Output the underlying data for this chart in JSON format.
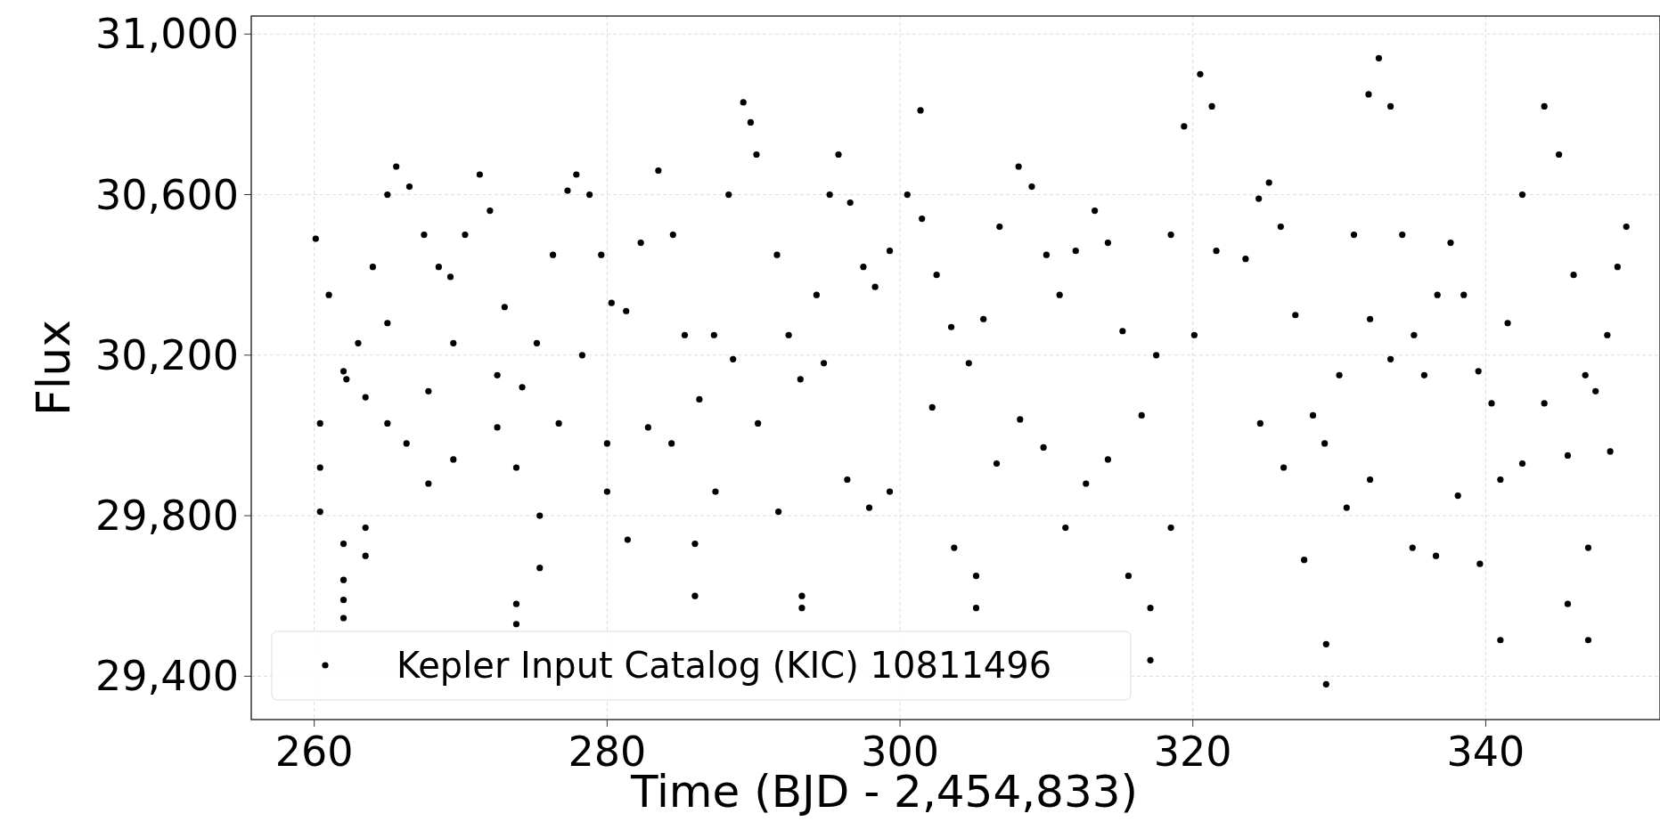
{
  "chart_data": {
    "type": "scatter",
    "xlabel": "Time (BJD - 2,454,833)",
    "ylabel": "Flux",
    "xlim": [
      255.7,
      351.9
    ],
    "ylim": [
      29292,
      31045
    ],
    "xticks": [
      260,
      280,
      300,
      320,
      340
    ],
    "yticks": [
      {
        "value": 29400,
        "label": "29,400"
      },
      {
        "value": 29800,
        "label": "29,800"
      },
      {
        "value": 30200,
        "label": "30,200"
      },
      {
        "value": 30600,
        "label": "30,600"
      },
      {
        "value": 31000,
        "label": "31,000"
      }
    ],
    "grid": true,
    "legend": "bottom left",
    "marker": "circle",
    "series": [
      {
        "name": "Kepler Input Catalog (KIC) 10811496",
        "color": "#000000",
        "x": [
          260.1,
          261,
          262,
          262.2,
          263,
          264,
          265,
          265.6,
          266.5,
          267.5,
          268.5,
          269.3,
          270.3,
          271.3,
          272,
          273,
          274.2,
          275.2,
          276.3,
          277.3,
          277.9,
          278.8,
          279.6,
          280.3,
          281.3,
          282.3,
          283.5,
          284.5,
          285.3,
          286.3,
          287.3,
          288.3,
          289.3,
          289.8,
          290.2,
          291.6,
          292.4,
          293.2,
          294.3,
          295.2,
          295.8,
          296.6,
          297.5,
          298.3,
          299.3,
          300.5,
          301.5,
          302.5,
          303.5,
          304.7,
          305.7,
          306.8,
          308.1,
          309,
          310,
          310.9,
          312,
          313.3,
          314.2,
          315.2,
          316.5,
          317.5,
          318.5,
          319.4,
          320.5,
          321.3,
          323.6,
          324.5,
          325.2,
          326,
          327,
          328.2,
          329,
          330,
          331,
          332,
          332.7,
          333.5,
          334.3,
          335.1,
          335.8,
          336.7,
          337.6,
          338.5,
          339.5,
          340.4,
          341.5,
          342.5,
          344,
          345,
          346,
          346.8,
          347.5,
          348.3,
          349,
          349.6,
          260.4,
          260.4,
          260.4,
          262,
          262,
          262,
          262,
          263.5,
          263.5,
          263.5,
          265,
          265,
          266.3,
          267.8,
          267.8,
          269.5,
          269.5,
          272.5,
          272.5,
          273.8,
          273.8,
          273.8,
          275.4,
          275.4,
          276.7,
          278.3,
          280,
          280,
          281.4,
          282.8,
          284.4,
          286,
          286,
          287.4,
          288.6,
          290.3,
          291.7,
          293.3,
          293.3,
          294.8,
          296.4,
          297.9,
          299.3,
          301.4,
          302.2,
          303.7,
          305.2,
          305.2,
          306.6,
          308.2,
          309.8,
          311.3,
          312.7,
          314.2,
          315.6,
          317.1,
          317.1,
          318.5,
          320.1,
          321.6,
          324.6,
          326.2,
          327.6,
          329.1,
          329.1,
          330.5,
          332.1,
          332.1,
          333.5,
          335,
          336.6,
          338.1,
          339.6,
          341,
          341,
          342.5,
          344,
          345.6,
          345.6,
          347,
          347,
          348.5
        ],
        "values": [
          30490,
          30350,
          30160,
          30140,
          30230,
          30420,
          30600,
          30670,
          30620,
          30500,
          30420,
          30395,
          30500,
          30650,
          30560,
          30320,
          30120,
          30230,
          30450,
          30610,
          30650,
          30600,
          30450,
          30330,
          30310,
          30480,
          30660,
          30500,
          30250,
          30090,
          30250,
          30600,
          30830,
          30780,
          30700,
          30450,
          30250,
          30140,
          30350,
          30600,
          30700,
          30580,
          30420,
          30370,
          30460,
          30600,
          30540,
          30400,
          30270,
          30180,
          30290,
          30520,
          30670,
          30620,
          30450,
          30350,
          30460,
          30560,
          30480,
          30260,
          30050,
          30200,
          30500,
          30770,
          30900,
          30820,
          30440,
          30590,
          30630,
          30520,
          30300,
          30050,
          29980,
          30150,
          30500,
          30850,
          30940,
          30820,
          30500,
          30250,
          30150,
          30350,
          30480,
          30350,
          30160,
          30080,
          30280,
          30600,
          30820,
          30700,
          30400,
          30150,
          30110,
          30250,
          30420,
          30520,
          30030,
          29920,
          29810,
          29730,
          29640,
          29590,
          29545,
          29770,
          29700,
          30095,
          30280,
          30030,
          29980,
          30110,
          29880,
          29940,
          30230,
          30150,
          30020,
          29920,
          29580,
          29530,
          29800,
          29670,
          30030,
          30200,
          29980,
          29860,
          29740,
          30020,
          29980,
          29730,
          29600,
          29860,
          30190,
          30030,
          29810,
          29600,
          29570,
          30180,
          29890,
          29820,
          29860,
          30810,
          30070,
          29720,
          29650,
          29570,
          29930,
          30040,
          29970,
          29770,
          29880,
          29940,
          29650,
          29570,
          29440,
          29770,
          30250,
          30460,
          30030,
          29920,
          29690,
          29480,
          29380,
          29820,
          30290,
          29890,
          30190,
          29720,
          29700,
          29850,
          29680,
          29490,
          29890,
          29930,
          30080,
          29950,
          29580,
          29720,
          29490,
          29960
        ]
      }
    ]
  }
}
